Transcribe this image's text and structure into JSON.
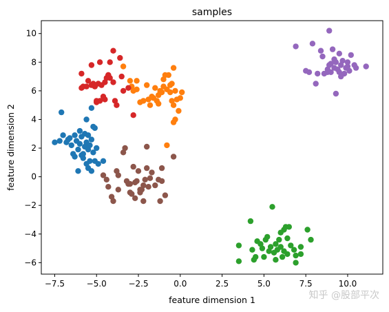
{
  "chart_data": {
    "type": "scatter",
    "title": "samples",
    "xlabel": "feature dimension 1",
    "ylabel": "feature dimension 2",
    "xlim": [
      -8.3,
      12.1
    ],
    "ylim": [
      -6.8,
      10.9
    ],
    "grid": false,
    "legend": "none",
    "x_ticks": [
      -7.5,
      -5.0,
      -2.5,
      0.0,
      2.5,
      5.0,
      7.5,
      10.0
    ],
    "x_tick_labels": [
      "−7.5",
      "−5.0",
      "−2.5",
      "0.0",
      "2.5",
      "5.0",
      "7.5",
      "10.0"
    ],
    "y_ticks": [
      -6,
      -4,
      -2,
      0,
      2,
      4,
      6,
      8,
      10
    ],
    "y_tick_labels": [
      "−6",
      "−4",
      "−2",
      "0",
      "2",
      "4",
      "6",
      "8",
      "10"
    ],
    "series": [
      {
        "color": "#1f77b4",
        "points": [
          [
            -7.5,
            2.4
          ],
          [
            -7.2,
            2.5
          ],
          [
            -7.1,
            4.5
          ],
          [
            -7.0,
            2.9
          ],
          [
            -6.8,
            2.4
          ],
          [
            -6.6,
            2.7
          ],
          [
            -6.5,
            2.2
          ],
          [
            -6.4,
            1.6
          ],
          [
            -6.3,
            2.9
          ],
          [
            -6.2,
            2.5
          ],
          [
            -6.1,
            1.9
          ],
          [
            -6.0,
            3.2
          ],
          [
            -6.0,
            2.3
          ],
          [
            -5.9,
            1.5
          ],
          [
            -5.9,
            2.8
          ],
          [
            -5.8,
            1.3
          ],
          [
            -5.7,
            2.1
          ],
          [
            -5.7,
            3.0
          ],
          [
            -5.6,
            4.0
          ],
          [
            -5.6,
            2.4
          ],
          [
            -5.5,
            1.9
          ],
          [
            -5.5,
            2.9
          ],
          [
            -5.4,
            2.2
          ],
          [
            -5.4,
            1.1
          ],
          [
            -5.3,
            2.6
          ],
          [
            -5.3,
            4.8
          ],
          [
            -5.2,
            3.5
          ],
          [
            -5.2,
            1.7
          ],
          [
            -5.1,
            3.4
          ],
          [
            -5.1,
            1.1
          ],
          [
            -5.0,
            2.0
          ],
          [
            -4.9,
            0.9
          ],
          [
            -5.5,
            0.6
          ],
          [
            -5.3,
            0.4
          ],
          [
            -6.1,
            0.4
          ],
          [
            -6.3,
            1.4
          ],
          [
            -5.6,
            0.9
          ],
          [
            -6.7,
            2.6
          ],
          [
            -4.6,
            1.1
          ],
          [
            -5.8,
            1.6
          ]
        ]
      },
      {
        "color": "#ff7f0e",
        "points": [
          [
            -3.4,
            7.7
          ],
          [
            -3.0,
            6.7
          ],
          [
            -2.9,
            6.3
          ],
          [
            -2.8,
            6.0
          ],
          [
            -2.6,
            6.1
          ],
          [
            -2.4,
            5.2
          ],
          [
            -2.2,
            5.3
          ],
          [
            -2.0,
            6.4
          ],
          [
            -1.9,
            5.4
          ],
          [
            -1.8,
            5.0
          ],
          [
            -1.7,
            5.6
          ],
          [
            -1.6,
            5.5
          ],
          [
            -1.5,
            6.2
          ],
          [
            -1.4,
            5.3
          ],
          [
            -1.3,
            5.7
          ],
          [
            -1.2,
            6.0
          ],
          [
            -1.1,
            5.9
          ],
          [
            -1.0,
            6.3
          ],
          [
            -1.0,
            6.8
          ],
          [
            -0.9,
            7.1
          ],
          [
            -0.8,
            6.1
          ],
          [
            -0.7,
            7.1
          ],
          [
            -0.6,
            5.9
          ],
          [
            -0.5,
            6.5
          ],
          [
            -0.5,
            5.3
          ],
          [
            -0.4,
            5.0
          ],
          [
            -0.3,
            4.0
          ],
          [
            -0.4,
            3.8
          ],
          [
            -0.3,
            6.0
          ],
          [
            -0.2,
            5.4
          ],
          [
            -0.1,
            4.6
          ],
          [
            0.0,
            5.5
          ],
          [
            0.1,
            5.9
          ],
          [
            -0.4,
            7.6
          ],
          [
            -0.8,
            2.2
          ],
          [
            -1.3,
            5.1
          ],
          [
            -2.6,
            6.7
          ],
          [
            -0.6,
            6.4
          ]
        ]
      },
      {
        "color": "#2ca02c",
        "points": [
          [
            3.5,
            -4.8
          ],
          [
            3.5,
            -5.9
          ],
          [
            4.2,
            -3.1
          ],
          [
            4.3,
            -5.1
          ],
          [
            4.4,
            -5.8
          ],
          [
            4.5,
            -5.6
          ],
          [
            4.6,
            -4.5
          ],
          [
            4.8,
            -4.7
          ],
          [
            4.9,
            -5.0
          ],
          [
            5.0,
            -5.6
          ],
          [
            5.1,
            -4.4
          ],
          [
            5.2,
            -4.2
          ],
          [
            5.3,
            -5.2
          ],
          [
            5.4,
            -4.9
          ],
          [
            5.5,
            -2.1
          ],
          [
            5.6,
            -5.3
          ],
          [
            5.7,
            -4.7
          ],
          [
            5.8,
            -5.1
          ],
          [
            5.9,
            -4.4
          ],
          [
            6.0,
            -4.9
          ],
          [
            6.1,
            -5.6
          ],
          [
            6.2,
            -3.7
          ],
          [
            6.2,
            -5.2
          ],
          [
            6.3,
            -3.5
          ],
          [
            6.4,
            -4.3
          ],
          [
            6.4,
            -5.4
          ],
          [
            6.5,
            -3.5
          ],
          [
            6.6,
            -4.8
          ],
          [
            6.8,
            -5.1
          ],
          [
            6.9,
            -5.5
          ],
          [
            6.9,
            -6.0
          ],
          [
            7.2,
            -5.4
          ],
          [
            7.2,
            -4.9
          ],
          [
            7.6,
            -3.7
          ],
          [
            7.8,
            -4.4
          ],
          [
            5.7,
            -5.8
          ],
          [
            6.0,
            -3.9
          ]
        ]
      },
      {
        "color": "#d62728",
        "points": [
          [
            -5.9,
            7.2
          ],
          [
            -5.9,
            6.2
          ],
          [
            -5.8,
            6.3
          ],
          [
            -5.6,
            6.3
          ],
          [
            -5.5,
            6.7
          ],
          [
            -5.3,
            6.4
          ],
          [
            -5.3,
            7.8
          ],
          [
            -5.1,
            6.3
          ],
          [
            -5.0,
            5.3
          ],
          [
            -4.9,
            6.5
          ],
          [
            -4.8,
            8.0
          ],
          [
            -4.8,
            5.3
          ],
          [
            -4.7,
            6.4
          ],
          [
            -4.6,
            5.6
          ],
          [
            -4.5,
            5.4
          ],
          [
            -4.4,
            6.9
          ],
          [
            -4.3,
            7.1
          ],
          [
            -4.2,
            6.9
          ],
          [
            -4.2,
            8.0
          ],
          [
            -4.0,
            8.8
          ],
          [
            -4.0,
            6.6
          ],
          [
            -3.9,
            5.3
          ],
          [
            -3.8,
            5.0
          ],
          [
            -3.6,
            8.3
          ],
          [
            -3.5,
            7.0
          ],
          [
            -3.4,
            6.0
          ],
          [
            -4.5,
            6.6
          ],
          [
            -5.2,
            6.5
          ],
          [
            -3.1,
            6.2
          ],
          [
            -2.8,
            4.3
          ],
          [
            -4.3,
            7.1
          ],
          [
            -5.0,
            5.2
          ]
        ]
      },
      {
        "color": "#9467bd",
        "points": [
          [
            6.9,
            9.1
          ],
          [
            7.5,
            7.4
          ],
          [
            7.7,
            7.3
          ],
          [
            7.9,
            9.3
          ],
          [
            8.1,
            6.5
          ],
          [
            8.2,
            7.2
          ],
          [
            8.4,
            8.8
          ],
          [
            8.6,
            7.2
          ],
          [
            8.8,
            7.5
          ],
          [
            8.9,
            10.2
          ],
          [
            8.9,
            7.8
          ],
          [
            9.0,
            7.3
          ],
          [
            9.1,
            8.9
          ],
          [
            9.2,
            8.2
          ],
          [
            9.2,
            7.6
          ],
          [
            9.3,
            5.8
          ],
          [
            9.3,
            8.0
          ],
          [
            9.4,
            7.5
          ],
          [
            9.5,
            7.3
          ],
          [
            9.5,
            8.6
          ],
          [
            9.6,
            7.8
          ],
          [
            9.7,
            8.1
          ],
          [
            9.8,
            7.2
          ],
          [
            9.9,
            7.6
          ],
          [
            10.0,
            8.0
          ],
          [
            10.1,
            7.4
          ],
          [
            10.2,
            8.5
          ],
          [
            10.4,
            7.8
          ],
          [
            10.5,
            7.6
          ],
          [
            11.1,
            7.7
          ],
          [
            8.5,
            8.4
          ],
          [
            8.8,
            7.3
          ],
          [
            9.0,
            7.9
          ],
          [
            9.6,
            7.0
          ],
          [
            10.0,
            7.7
          ]
        ]
      },
      {
        "color": "#8c564b",
        "points": [
          [
            -4.6,
            0.1
          ],
          [
            -4.4,
            -0.2
          ],
          [
            -4.3,
            -0.7
          ],
          [
            -4.1,
            -1.4
          ],
          [
            -4.0,
            -1.7
          ],
          [
            -3.8,
            0.4
          ],
          [
            -3.7,
            -0.9
          ],
          [
            -3.7,
            0.1
          ],
          [
            -3.4,
            1.7
          ],
          [
            -3.2,
            -0.3
          ],
          [
            -3.1,
            -0.5
          ],
          [
            -3.0,
            -1.1
          ],
          [
            -3.0,
            -0.5
          ],
          [
            -2.9,
            -1.2
          ],
          [
            -2.8,
            0.7
          ],
          [
            -2.7,
            -0.4
          ],
          [
            -2.7,
            -1.5
          ],
          [
            -2.6,
            -0.3
          ],
          [
            -2.5,
            0.4
          ],
          [
            -2.4,
            -0.9
          ],
          [
            -2.4,
            -1.1
          ],
          [
            -2.2,
            -0.6
          ],
          [
            -2.2,
            -1.7
          ],
          [
            -2.1,
            -0.2
          ],
          [
            -2.0,
            2.1
          ],
          [
            -2.0,
            0.6
          ],
          [
            -1.9,
            -0.7
          ],
          [
            -1.8,
            -0.1
          ],
          [
            -1.7,
            0.3
          ],
          [
            -1.5,
            -0.6
          ],
          [
            -1.3,
            -0.2
          ],
          [
            -1.2,
            -1.7
          ],
          [
            -1.1,
            0.6
          ],
          [
            -1.1,
            -0.3
          ],
          [
            -0.9,
            -1.3
          ],
          [
            -0.4,
            1.4
          ],
          [
            -3.3,
            2.0
          ],
          [
            -2.3,
            -0.9
          ]
        ]
      }
    ]
  },
  "watermark": "知乎 @股部平次"
}
